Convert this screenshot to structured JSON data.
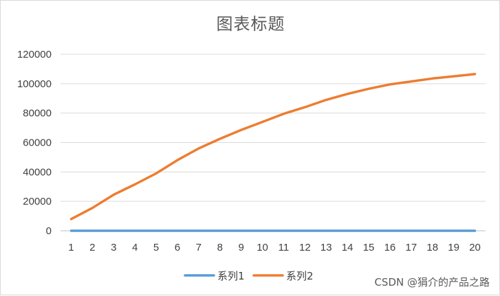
{
  "chart_data": {
    "type": "line",
    "title": "图表标题",
    "xlabel": "",
    "ylabel": "",
    "x": [
      1,
      2,
      3,
      4,
      5,
      6,
      7,
      8,
      9,
      10,
      11,
      12,
      13,
      14,
      15,
      16,
      17,
      18,
      19,
      20
    ],
    "ylim": [
      0,
      120000
    ],
    "yticks": [
      0,
      20000,
      40000,
      60000,
      80000,
      100000,
      120000
    ],
    "grid": true,
    "legend_position": "bottom",
    "series": [
      {
        "name": "系列1",
        "color": "#5b9bd5",
        "values": [
          1,
          1,
          1,
          1,
          1,
          1,
          1,
          1,
          1,
          1,
          1,
          1,
          1,
          1,
          1,
          1,
          1,
          1,
          1,
          1
        ]
      },
      {
        "name": "系列2",
        "color": "#ed7d31",
        "values": [
          8000,
          15500,
          24500,
          31500,
          39000,
          48000,
          56000,
          62500,
          68500,
          74000,
          79500,
          84000,
          89000,
          93000,
          96500,
          99500,
          101500,
          103500,
          105000,
          106500
        ]
      }
    ]
  },
  "watermark": "CSDN @狷介的产品之路"
}
